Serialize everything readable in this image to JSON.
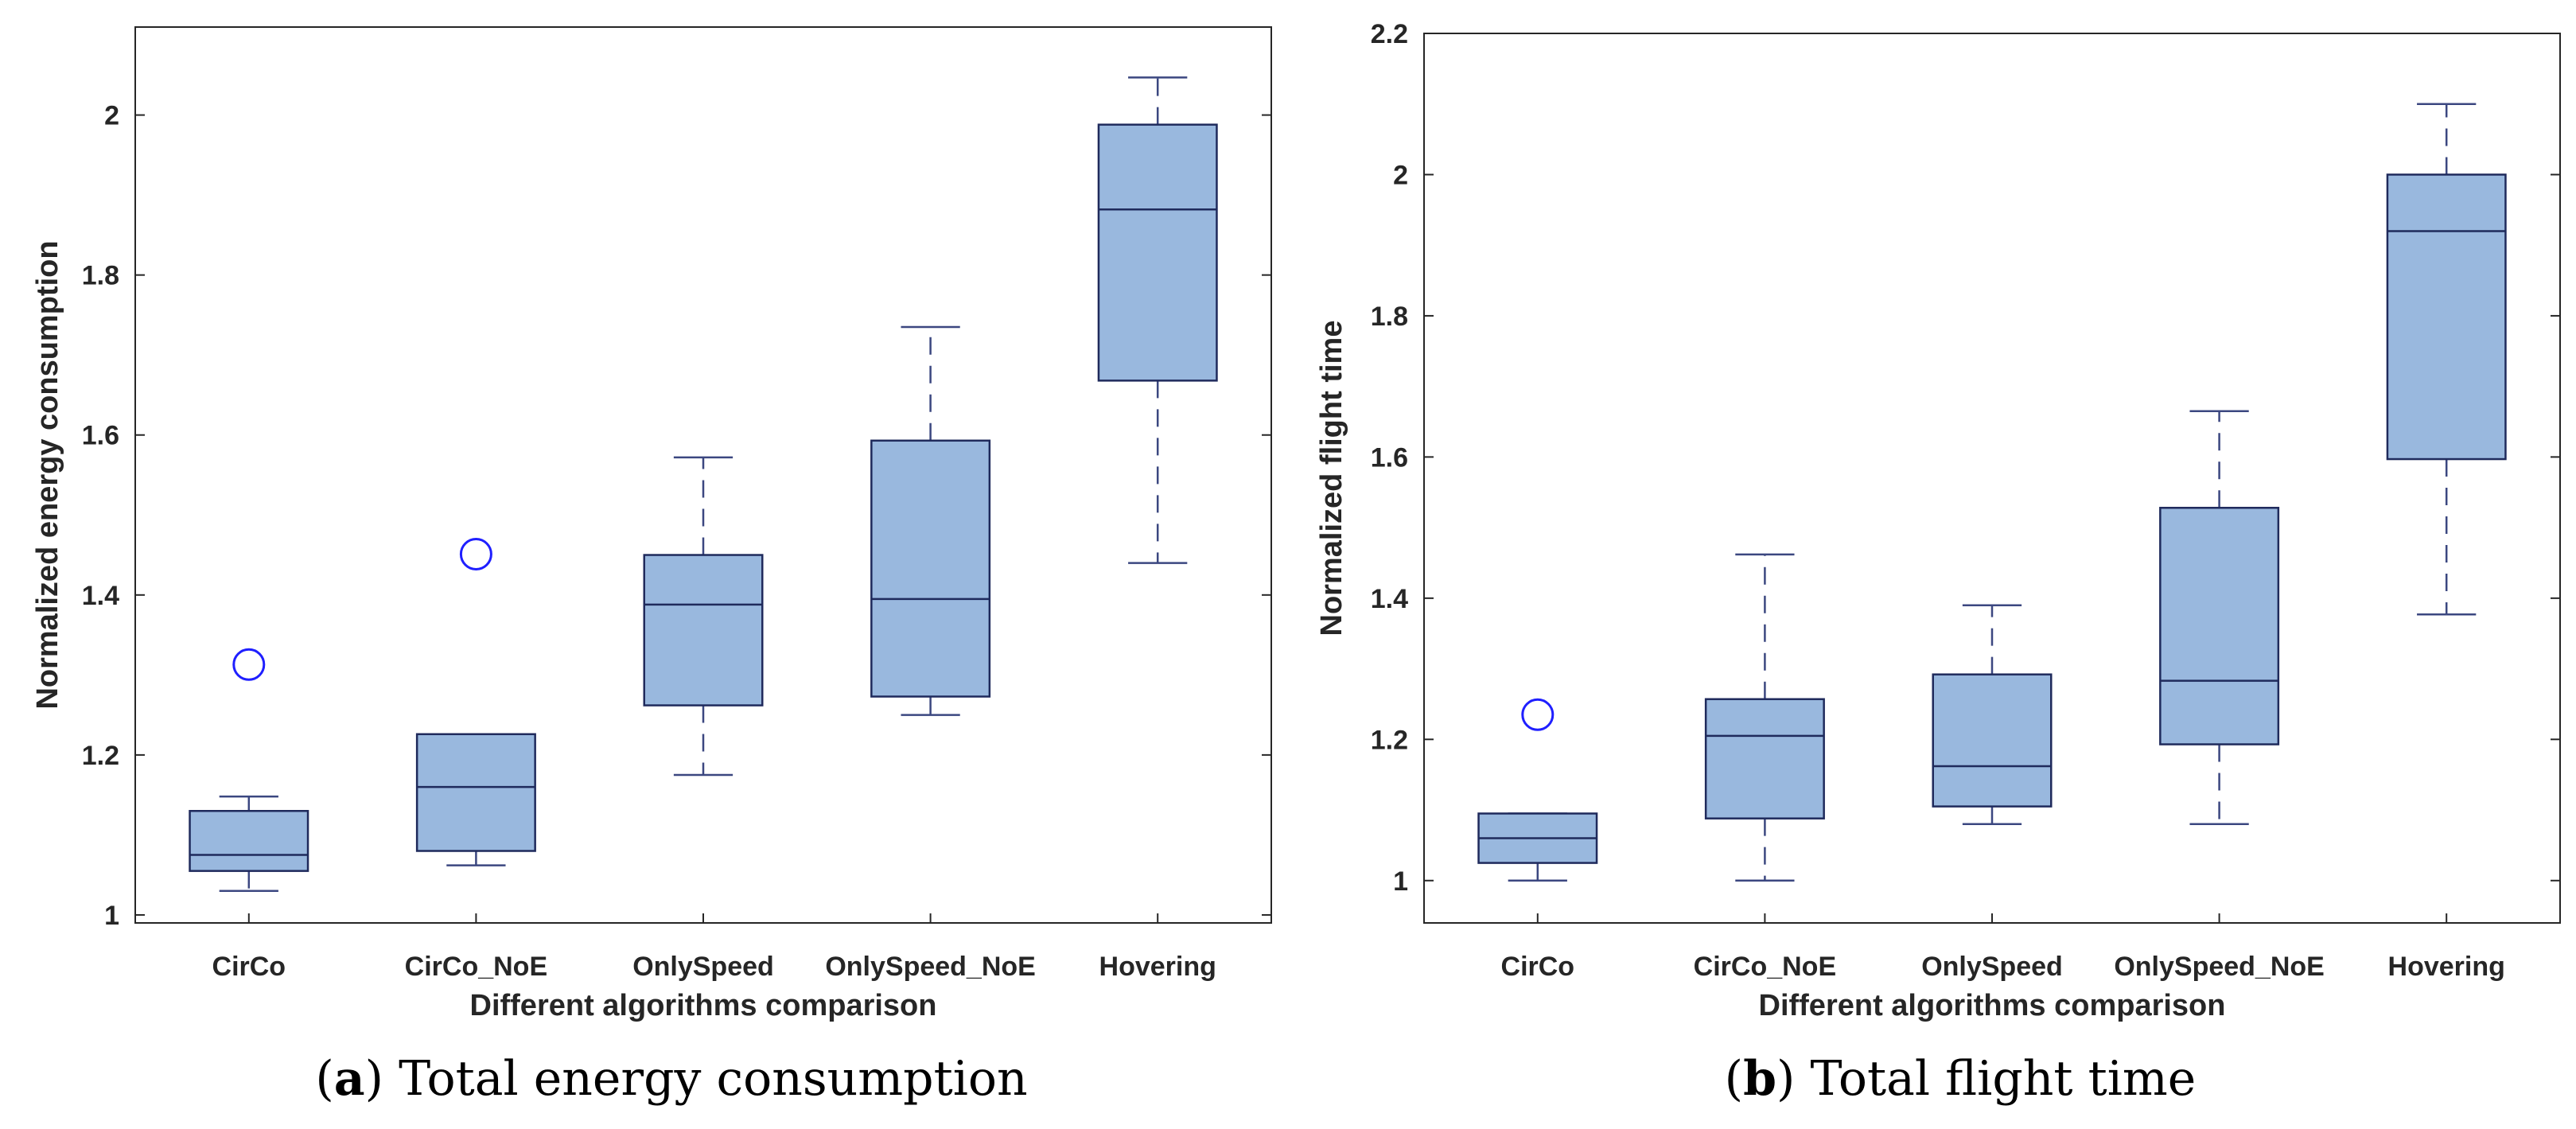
{
  "colors": {
    "box_fill": "#99b8de",
    "box_stroke": "#1f2a5c",
    "whisker": "#3b4780",
    "outlier": "#1f1fff",
    "axis": "#262626"
  },
  "chart_data": [
    {
      "type": "boxplot",
      "title": "",
      "xlabel": "Different algorithms comparison",
      "ylabel": "Normalized energy consumption",
      "caption_letter": "a",
      "caption_text": "Total energy consumption",
      "ylim": [
        0.99,
        2.11
      ],
      "yticks": [
        1,
        1.2,
        1.4,
        1.6,
        1.8,
        2
      ],
      "ytick_labels": [
        "1",
        "1.2",
        "1.4",
        "1.6",
        "1.8",
        "2"
      ],
      "categories": [
        "CirCo",
        "CirCo_NoE",
        "OnlySpeed",
        "OnlySpeed_NoE",
        "Hovering"
      ],
      "boxes": [
        {
          "whisker_low": 1.03,
          "q1": 1.055,
          "median": 1.075,
          "q3": 1.13,
          "whisker_high": 1.148,
          "outliers": [
            1.313
          ]
        },
        {
          "whisker_low": 1.062,
          "q1": 1.08,
          "median": 1.16,
          "q3": 1.226,
          "whisker_high": 1.226,
          "outliers": [
            1.451
          ]
        },
        {
          "whisker_low": 1.175,
          "q1": 1.262,
          "median": 1.388,
          "q3": 1.45,
          "whisker_high": 1.572,
          "outliers": []
        },
        {
          "whisker_low": 1.25,
          "q1": 1.273,
          "median": 1.395,
          "q3": 1.593,
          "whisker_high": 1.735,
          "outliers": []
        },
        {
          "whisker_low": 1.44,
          "q1": 1.668,
          "median": 1.882,
          "q3": 1.988,
          "whisker_high": 2.047,
          "outliers": []
        }
      ]
    },
    {
      "type": "boxplot",
      "title": "",
      "xlabel": "Different algorithms comparison",
      "ylabel": "Normalized flight time",
      "caption_letter": "b",
      "caption_text": "Total flight time",
      "ylim": [
        0.94,
        2.2
      ],
      "yticks": [
        1,
        1.2,
        1.4,
        1.6,
        1.8,
        2,
        2.2
      ],
      "ytick_labels": [
        "1",
        "1.2",
        "1.4",
        "1.6",
        "1.8",
        "2",
        "2.2"
      ],
      "categories": [
        "CirCo",
        "CirCo_NoE",
        "OnlySpeed",
        "OnlySpeed_NoE",
        "Hovering"
      ],
      "boxes": [
        {
          "whisker_low": 1.0,
          "q1": 1.025,
          "median": 1.06,
          "q3": 1.095,
          "whisker_high": 1.095,
          "outliers": [
            1.235
          ]
        },
        {
          "whisker_low": 1.0,
          "q1": 1.088,
          "median": 1.205,
          "q3": 1.257,
          "whisker_high": 1.462,
          "outliers": []
        },
        {
          "whisker_low": 1.08,
          "q1": 1.105,
          "median": 1.162,
          "q3": 1.292,
          "whisker_high": 1.39,
          "outliers": []
        },
        {
          "whisker_low": 1.08,
          "q1": 1.193,
          "median": 1.283,
          "q3": 1.528,
          "whisker_high": 1.665,
          "outliers": []
        },
        {
          "whisker_low": 1.377,
          "q1": 1.597,
          "median": 1.92,
          "q3": 2.0,
          "whisker_high": 2.1,
          "outliers": []
        }
      ]
    }
  ]
}
